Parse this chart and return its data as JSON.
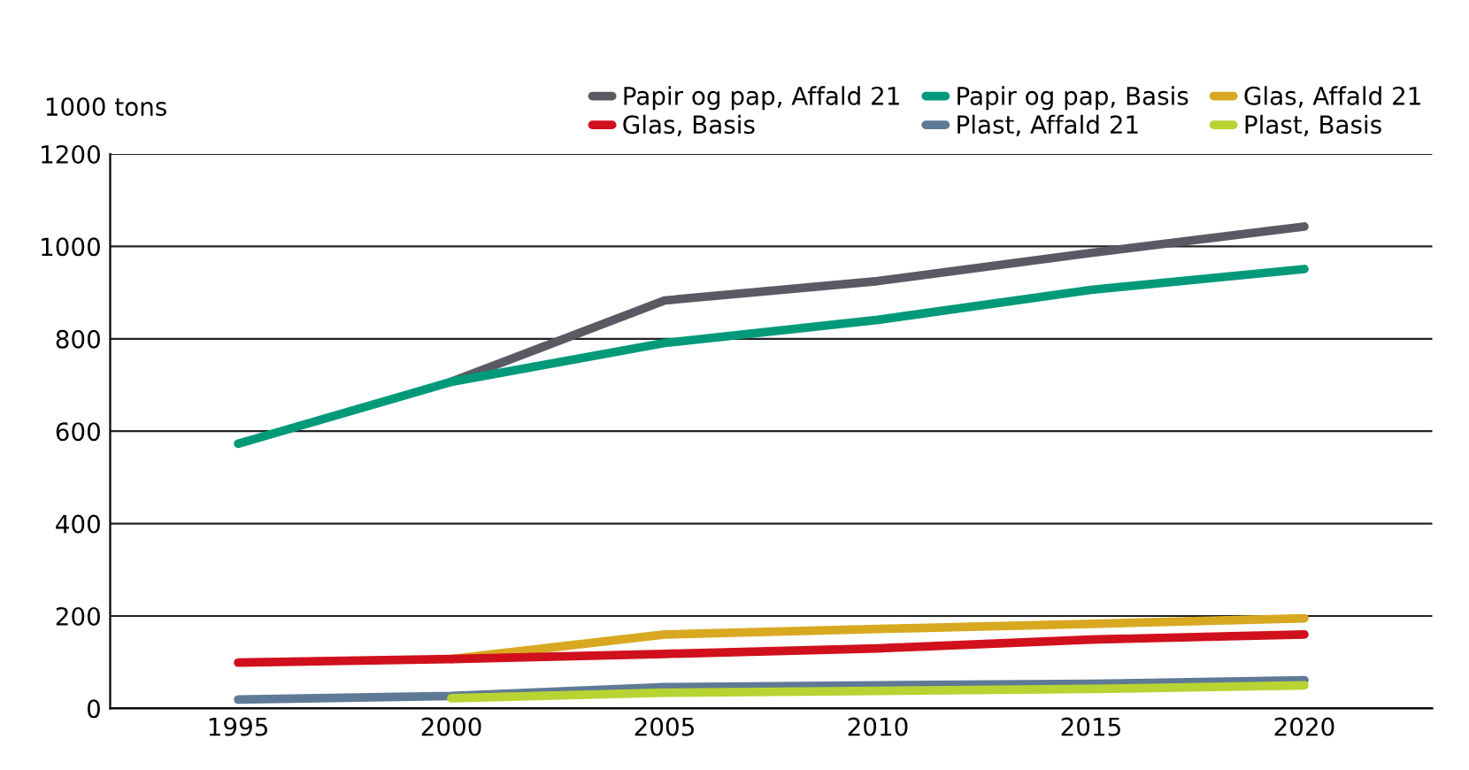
{
  "chart_data": {
    "type": "line",
    "ylabel": "1000 tons",
    "x": [
      1995,
      2000,
      2005,
      2010,
      2015,
      2020
    ],
    "series": [
      {
        "name": "Papir og pap, Affald 21",
        "color": "#5a5a64",
        "values": [
          null,
          707,
          883,
          925,
          986,
          1043
        ]
      },
      {
        "name": "Papir og pap, Basis",
        "color": "#009a7a",
        "values": [
          573,
          707,
          791,
          841,
          906,
          951
        ]
      },
      {
        "name": "Glas, Affald 21",
        "color": "#d8a920",
        "values": [
          null,
          107,
          160,
          172,
          183,
          195
        ]
      },
      {
        "name": "Glas, Basis",
        "color": "#d0101c",
        "values": [
          99,
          107,
          118,
          130,
          149,
          160
        ]
      },
      {
        "name": "Plast, Affald 21",
        "color": "#5f7a96",
        "values": [
          19,
          27,
          46,
          50,
          53,
          61
        ]
      },
      {
        "name": "Plast, Basis",
        "color": "#b8d432",
        "values": [
          null,
          22,
          34,
          38,
          42,
          50
        ]
      }
    ],
    "xlim": [
      1992,
      2023
    ],
    "xticks": [
      1995,
      2000,
      2005,
      2010,
      2015,
      2020
    ],
    "ylim": [
      0,
      1200
    ],
    "yticks": [
      0,
      200,
      400,
      600,
      800,
      1000,
      1200
    ],
    "grid": "y",
    "legend": "top right",
    "marker": "none",
    "line_style": "solid"
  }
}
